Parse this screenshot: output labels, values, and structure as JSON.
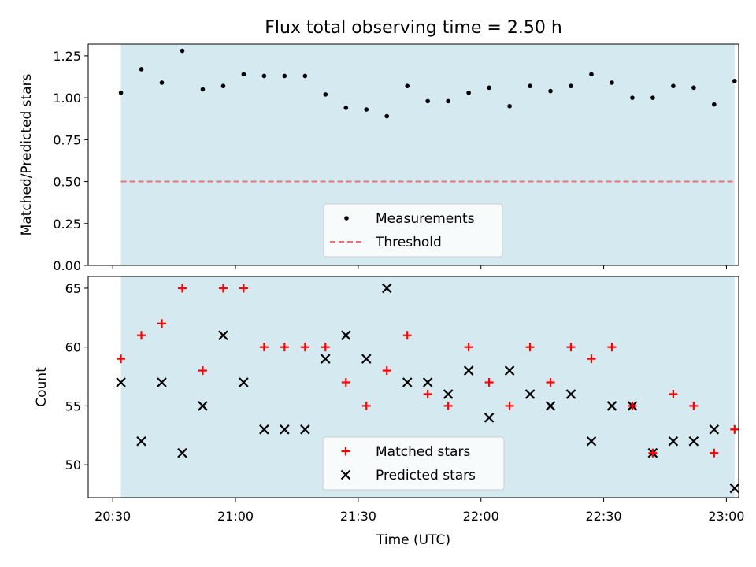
{
  "chart_data": [
    {
      "type": "scatter",
      "title": "Flux total observing time = 2.50 h",
      "xlabel": "",
      "ylabel": "Matched/Predicted stars",
      "ylim": [
        0,
        1.32
      ],
      "xlim": [
        "20:24",
        "23:03"
      ],
      "yticks": [
        "0.00",
        "0.25",
        "0.50",
        "0.75",
        "1.00",
        "1.25"
      ],
      "yticks_values": [
        0,
        0.25,
        0.5,
        0.75,
        1.0,
        1.25
      ],
      "shaded_region": {
        "from": "20:32",
        "to": "23:02",
        "color": "#d4eaf0"
      },
      "legend_position": "lower center",
      "series": [
        {
          "name": "Measurements",
          "marker": "dot",
          "color": "#000000",
          "x": [
            "20:32",
            "20:37",
            "20:42",
            "20:47",
            "20:52",
            "20:57",
            "21:02",
            "21:07",
            "21:12",
            "21:17",
            "21:22",
            "21:27",
            "21:32",
            "21:37",
            "21:42",
            "21:47",
            "21:52",
            "21:57",
            "22:02",
            "22:07",
            "22:12",
            "22:17",
            "22:22",
            "22:27",
            "22:32",
            "22:37",
            "22:42",
            "22:47",
            "22:52",
            "22:57",
            "23:02"
          ],
          "values": [
            1.03,
            1.17,
            1.09,
            1.28,
            1.05,
            1.07,
            1.14,
            1.13,
            1.13,
            1.13,
            1.02,
            0.94,
            0.93,
            0.89,
            1.07,
            0.98,
            0.98,
            1.03,
            1.06,
            0.95,
            1.07,
            1.04,
            1.07,
            1.14,
            1.09,
            1.0,
            1.0,
            1.07,
            1.06,
            0.96,
            1.1
          ]
        },
        {
          "name": "Threshold",
          "marker": "dashed-line",
          "color": "#f07070",
          "values": [
            0.5
          ]
        }
      ]
    },
    {
      "type": "scatter",
      "title": "",
      "xlabel": "Time (UTC)",
      "ylabel": "Count",
      "ylim": [
        47.2,
        66
      ],
      "xlim": [
        "20:24",
        "23:03"
      ],
      "yticks": [
        "50",
        "55",
        "60",
        "65"
      ],
      "yticks_values": [
        50,
        55,
        60,
        65
      ],
      "xticks": [
        "20:30",
        "21:00",
        "21:30",
        "22:00",
        "22:30",
        "23:00"
      ],
      "shaded_region": {
        "from": "20:32",
        "to": "23:02",
        "color": "#d4eaf0"
      },
      "legend_position": "lower center",
      "series": [
        {
          "name": "Matched stars",
          "marker": "plus",
          "color": "#ff0000",
          "x": [
            "20:32",
            "20:37",
            "20:42",
            "20:47",
            "20:52",
            "20:57",
            "21:02",
            "21:07",
            "21:12",
            "21:17",
            "21:22",
            "21:27",
            "21:32",
            "21:37",
            "21:42",
            "21:47",
            "21:52",
            "21:57",
            "22:02",
            "22:07",
            "22:12",
            "22:17",
            "22:22",
            "22:27",
            "22:32",
            "22:37",
            "22:42",
            "22:47",
            "22:52",
            "22:57",
            "23:02"
          ],
          "values": [
            59,
            61,
            62,
            65,
            58,
            65,
            65,
            60,
            60,
            60,
            60,
            57,
            55,
            58,
            61,
            56,
            55,
            60,
            57,
            55,
            60,
            57,
            60,
            59,
            60,
            55,
            51,
            56,
            55,
            51,
            53
          ]
        },
        {
          "name": "Predicted stars",
          "marker": "x",
          "color": "#000000",
          "x": [
            "20:32",
            "20:37",
            "20:42",
            "20:47",
            "20:52",
            "20:57",
            "21:02",
            "21:07",
            "21:12",
            "21:17",
            "21:22",
            "21:27",
            "21:32",
            "21:37",
            "21:42",
            "21:47",
            "21:52",
            "21:57",
            "22:02",
            "22:07",
            "22:12",
            "22:17",
            "22:22",
            "22:27",
            "22:32",
            "22:37",
            "22:42",
            "22:47",
            "22:52",
            "22:57",
            "23:02"
          ],
          "values": [
            57,
            52,
            57,
            51,
            55,
            61,
            57,
            53,
            53,
            53,
            59,
            61,
            59,
            65,
            57,
            57,
            56,
            58,
            54,
            58,
            56,
            55,
            56,
            52,
            55,
            55,
            51,
            52,
            52,
            53,
            48
          ]
        }
      ]
    }
  ]
}
